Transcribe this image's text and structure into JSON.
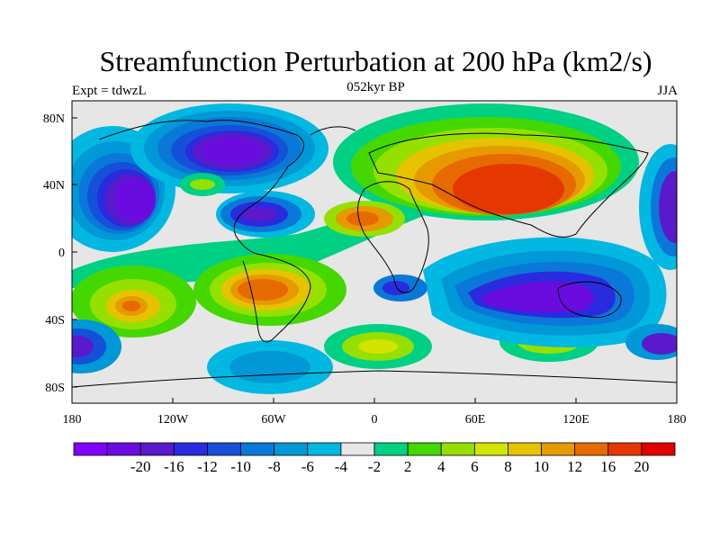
{
  "title": "Streamfunction Perturbation at 200 hPa (km2/s)",
  "experiment_label": "Expt = tdwzL",
  "period_label": "052kyr BP",
  "season_label": "JJA",
  "lon_ticks": [
    "180",
    "120W",
    "60W",
    "0",
    "60E",
    "120E",
    "180"
  ],
  "lat_ticks": [
    "80N",
    "40N",
    "0",
    "40S",
    "80S"
  ],
  "colorbar": {
    "colors": [
      "#7f00ff",
      "#6a0be0",
      "#5a1acb",
      "#2a2ade",
      "#1450d8",
      "#0a78d8",
      "#0098d6",
      "#00b8e2",
      "#e6e6e6",
      "#00d084",
      "#44d800",
      "#96e000",
      "#d2e400",
      "#e6c300",
      "#e69a00",
      "#e66a00",
      "#e43800",
      "#e00000"
    ],
    "labels": [
      "-20",
      "-16",
      "-12",
      "-10",
      "-8",
      "-6",
      "-4",
      "-2",
      "2",
      "4",
      "6",
      "8",
      "10",
      "12",
      "16",
      "20"
    ]
  },
  "map_data": {
    "projection": "cylindrical-equidistant",
    "lon_range": [
      -180,
      180
    ],
    "lat_range": [
      -90,
      90
    ],
    "contour_levels": [
      -20,
      -16,
      -12,
      -10,
      -8,
      -6,
      -4,
      -2,
      2,
      4,
      6,
      8,
      10,
      12,
      16,
      20
    ]
  }
}
